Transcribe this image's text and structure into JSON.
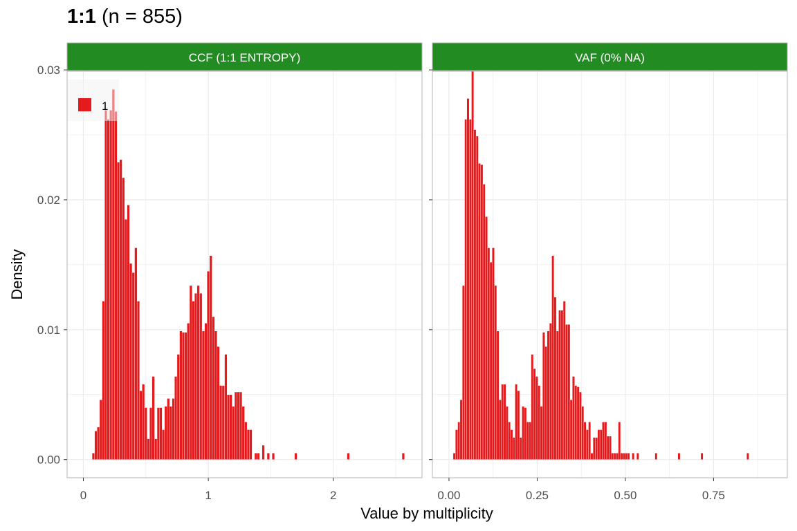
{
  "title": {
    "main": "1:1",
    "sub": "(n = 855)"
  },
  "xlabel": "Value by multiplicity",
  "ylabel": "Density",
  "legend": {
    "label": "1",
    "color": "#E41A1C",
    "position": "top-left"
  },
  "colors": {
    "strip": "#228B22",
    "bar": "#E41A1C",
    "grid": "#EBEBEB",
    "border": "#B3B3B3"
  },
  "chart_data": [
    {
      "type": "bar",
      "strip_label": "CCF (1:1 ENTROPY)",
      "xlim": [
        -0.13,
        2.71
      ],
      "ylim": [
        -0.0014,
        0.0299
      ],
      "xticks": [
        0,
        1,
        2
      ],
      "xtick_labels": [
        "0",
        "1",
        "2"
      ],
      "yticks": [
        0,
        0.01,
        0.02,
        0.03
      ],
      "ytick_labels": [
        "0.00",
        "0.01",
        "0.02",
        "0.03"
      ],
      "grid": true,
      "binwidth": 0.02,
      "x": [
        0.08,
        0.1,
        0.12,
        0.14,
        0.16,
        0.18,
        0.2,
        0.22,
        0.24,
        0.26,
        0.28,
        0.3,
        0.32,
        0.34,
        0.36,
        0.38,
        0.4,
        0.42,
        0.44,
        0.46,
        0.48,
        0.5,
        0.52,
        0.54,
        0.56,
        0.58,
        0.6,
        0.62,
        0.64,
        0.66,
        0.68,
        0.7,
        0.72,
        0.74,
        0.76,
        0.78,
        0.8,
        0.82,
        0.84,
        0.86,
        0.88,
        0.9,
        0.92,
        0.94,
        0.96,
        0.98,
        1.0,
        1.02,
        1.04,
        1.06,
        1.08,
        1.1,
        1.12,
        1.14,
        1.16,
        1.18,
        1.2,
        1.22,
        1.24,
        1.26,
        1.28,
        1.3,
        1.32,
        1.34,
        1.38,
        1.4,
        1.44,
        1.48,
        1.52,
        1.7,
        2.12,
        2.56
      ],
      "values": [
        0.0005,
        0.0022,
        0.0025,
        0.0046,
        0.0122,
        0.0269,
        0.0262,
        0.0269,
        0.0285,
        0.0268,
        0.0229,
        0.0231,
        0.0217,
        0.0185,
        0.0196,
        0.0151,
        0.0144,
        0.0163,
        0.0122,
        0.0053,
        0.0058,
        0.004,
        0.0016,
        0.004,
        0.0064,
        0.0016,
        0.004,
        0.004,
        0.0023,
        0.0041,
        0.0047,
        0.0041,
        0.0047,
        0.0064,
        0.0081,
        0.0099,
        0.0098,
        0.0098,
        0.0105,
        0.0134,
        0.0122,
        0.0128,
        0.0134,
        0.0128,
        0.0099,
        0.0105,
        0.0145,
        0.0157,
        0.011,
        0.0099,
        0.0087,
        0.0057,
        0.0057,
        0.0081,
        0.005,
        0.005,
        0.0041,
        0.0052,
        0.0052,
        0.0052,
        0.0041,
        0.0029,
        0.0023,
        0.0023,
        0.0005,
        0.0005,
        0.0011,
        0.0005,
        0.0005,
        0.0005,
        0.0005,
        0.0005
      ]
    },
    {
      "type": "bar",
      "strip_label": "VAF (0% NA)",
      "xlim": [
        -0.047,
        0.959
      ],
      "ylim": [
        -0.0014,
        0.0299
      ],
      "xticks": [
        0,
        0.25,
        0.5,
        0.75
      ],
      "xtick_labels": [
        "0.00",
        "0.25",
        "0.50",
        "0.75"
      ],
      "yticks": [
        0,
        0.01,
        0.02,
        0.03
      ],
      "ytick_labels": [
        "",
        "",
        "",
        ""
      ],
      "grid": true,
      "binwidth": 0.0065,
      "x": [
        0.015,
        0.0215,
        0.028,
        0.0345,
        0.041,
        0.0475,
        0.054,
        0.0605,
        0.067,
        0.0735,
        0.08,
        0.0865,
        0.093,
        0.0995,
        0.106,
        0.1125,
        0.119,
        0.1255,
        0.132,
        0.1385,
        0.145,
        0.1515,
        0.158,
        0.1645,
        0.171,
        0.1775,
        0.184,
        0.1905,
        0.197,
        0.2035,
        0.21,
        0.2165,
        0.223,
        0.2295,
        0.236,
        0.2425,
        0.249,
        0.2555,
        0.262,
        0.2685,
        0.275,
        0.2815,
        0.288,
        0.2945,
        0.301,
        0.3075,
        0.314,
        0.3205,
        0.327,
        0.3335,
        0.34,
        0.3465,
        0.353,
        0.3595,
        0.366,
        0.3725,
        0.379,
        0.3855,
        0.392,
        0.3985,
        0.405,
        0.4115,
        0.418,
        0.4245,
        0.431,
        0.4375,
        0.444,
        0.4505,
        0.457,
        0.4635,
        0.47,
        0.4765,
        0.483,
        0.4895,
        0.496,
        0.5025,
        0.509,
        0.522,
        0.535,
        0.587,
        0.652,
        0.717,
        0.847
      ],
      "values": [
        0.0005,
        0.0023,
        0.0029,
        0.0046,
        0.0134,
        0.0262,
        0.0278,
        0.0262,
        0.0302,
        0.0254,
        0.0249,
        0.0228,
        0.0227,
        0.0212,
        0.0187,
        0.0163,
        0.0152,
        0.0163,
        0.0134,
        0.0099,
        0.0046,
        0.0058,
        0.0058,
        0.0041,
        0.0029,
        0.0023,
        0.0017,
        0.0058,
        0.0053,
        0.0017,
        0.0041,
        0.004,
        0.0029,
        0.0029,
        0.0081,
        0.007,
        0.0064,
        0.0057,
        0.0041,
        0.0098,
        0.0087,
        0.0099,
        0.0105,
        0.0157,
        0.0125,
        0.0099,
        0.0115,
        0.0115,
        0.0122,
        0.0104,
        0.0104,
        0.0046,
        0.0064,
        0.0057,
        0.0056,
        0.0052,
        0.0041,
        0.0029,
        0.0023,
        0.0029,
        0.0005,
        0.0017,
        0.0017,
        0.0023,
        0.0023,
        0.0029,
        0.0029,
        0.0018,
        0.0018,
        0.0005,
        0.0005,
        0.0005,
        0.0029,
        0.0005,
        0.0005,
        0.0005,
        0.0005,
        0.0005,
        0.0005,
        0.0005,
        0.0005,
        0.0005,
        0.0005
      ]
    }
  ]
}
